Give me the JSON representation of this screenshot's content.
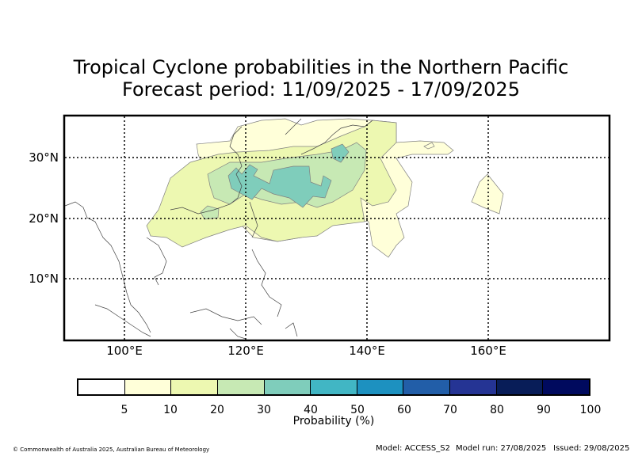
{
  "title": {
    "line1": "Tropical Cyclone probabilities in the Northern Pacific",
    "line2": "Forecast period: 11/09/2025 - 17/09/2025"
  },
  "map": {
    "lat_labels": [
      "30°N",
      "20°N",
      "10°N"
    ],
    "lon_labels": [
      "100°E",
      "120°E",
      "140°E",
      "160°E"
    ],
    "lat_values": [
      30,
      20,
      10
    ],
    "lon_values": [
      100,
      120,
      140,
      160
    ],
    "extent": {
      "lon_min": 90,
      "lon_max": 180,
      "lat_min": 0,
      "lat_max": 37
    },
    "gridlines": "dotted"
  },
  "colorbar": {
    "label": "Probability (%)",
    "ticks": [
      "5",
      "10",
      "20",
      "30",
      "40",
      "50",
      "60",
      "70",
      "80",
      "90",
      "100"
    ],
    "colors": [
      "#ffffff",
      "#ffffd9",
      "#edf8b1",
      "#c7e9b4",
      "#7fcdbb",
      "#41b6c4",
      "#1d91c0",
      "#225ea8",
      "#253494",
      "#081d58",
      "#000a5e"
    ]
  },
  "footer": {
    "copyright": "© Commonwealth of Australia 2025, Australian Bureau of Meteorology",
    "model": "Model: ACCESS_S2",
    "model_run": "Model run: 27/08/2025",
    "issued": "Issued: 29/08/2025"
  }
}
